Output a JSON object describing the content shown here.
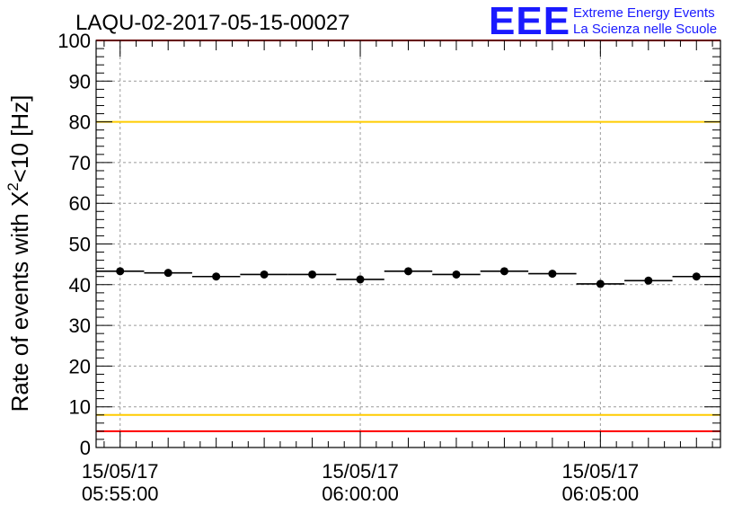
{
  "brand": {
    "logo_text": "EEE",
    "line1": "Extreme Energy Events",
    "line2": "La Scienza nelle Scuole",
    "color": "#1a1aff"
  },
  "chart_data": {
    "type": "scatter",
    "title": "LAQU-02-2017-05-15-00027",
    "ylabel": "Rate of events with X",
    "ylabel_sup": "2",
    "ylabel_rest": "<10 [Hz]",
    "ylim": [
      0,
      100
    ],
    "yticks": [
      0,
      10,
      20,
      30,
      40,
      50,
      60,
      70,
      80,
      90,
      100
    ],
    "xticks": [
      {
        "date": "15/05/17",
        "time": "05:55:00",
        "t": 0
      },
      {
        "date": "15/05/17",
        "time": "06:00:00",
        "t": 300
      },
      {
        "date": "15/05/17",
        "time": "06:05:00",
        "t": 600
      }
    ],
    "xlim_seconds": [
      -30,
      750
    ],
    "grid": true,
    "series": [
      {
        "marker_color": "#000000",
        "bin_width_seconds": 60,
        "points": [
          {
            "t": 0,
            "y": 43.3
          },
          {
            "t": 60,
            "y": 42.9
          },
          {
            "t": 120,
            "y": 42.0
          },
          {
            "t": 180,
            "y": 42.5
          },
          {
            "t": 240,
            "y": 42.5
          },
          {
            "t": 300,
            "y": 41.3
          },
          {
            "t": 360,
            "y": 43.3
          },
          {
            "t": 420,
            "y": 42.5
          },
          {
            "t": 480,
            "y": 43.3
          },
          {
            "t": 540,
            "y": 42.7
          },
          {
            "t": 600,
            "y": 40.2
          },
          {
            "t": 660,
            "y": 41.0
          },
          {
            "t": 720,
            "y": 42.0
          }
        ]
      }
    ],
    "reference_lines": [
      {
        "y": 100,
        "color": "#ff0000"
      },
      {
        "y": 80,
        "color": "#ffcc00"
      },
      {
        "y": 8,
        "color": "#ffcc00"
      },
      {
        "y": 4,
        "color": "#ff0000"
      }
    ]
  }
}
